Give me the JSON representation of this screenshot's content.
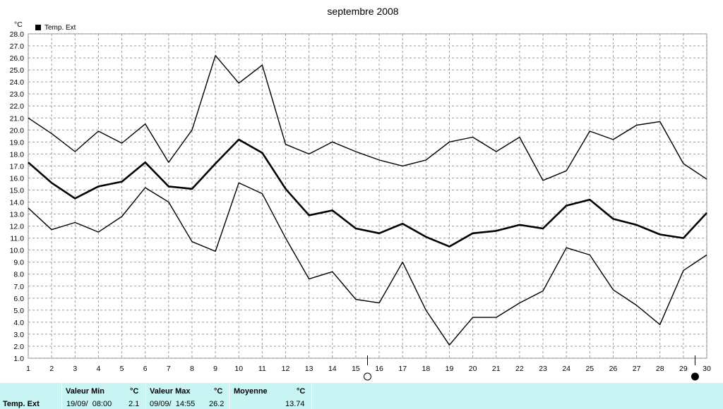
{
  "chart_data": {
    "type": "line",
    "title": "septembre 2008",
    "ylabel": "°C",
    "ylim": [
      1.0,
      28.0
    ],
    "yticks": [
      "1.0",
      "2.0",
      "3.0",
      "4.0",
      "5.0",
      "6.0",
      "7.0",
      "8.0",
      "9.0",
      "10.0",
      "11.0",
      "12.0",
      "13.0",
      "14.0",
      "15.0",
      "16.0",
      "17.0",
      "18.0",
      "19.0",
      "20.0",
      "21.0",
      "22.0",
      "23.0",
      "24.0",
      "25.0",
      "26.0",
      "27.0",
      "28.0"
    ],
    "x": [
      "1",
      "2",
      "3",
      "4",
      "5",
      "6",
      "7",
      "8",
      "9",
      "10",
      "11",
      "12",
      "13",
      "14",
      "15",
      "16",
      "17",
      "18",
      "19",
      "20",
      "21",
      "22",
      "23",
      "24",
      "25",
      "26",
      "27",
      "28",
      "29",
      "30"
    ],
    "legend": {
      "label": "Temp. Ext",
      "color": "#000000",
      "placement": "top-left"
    },
    "grid": true,
    "moon_markers": [
      {
        "day": 15.5,
        "phase": "new",
        "symbol": "○"
      },
      {
        "day": 29.5,
        "phase": "full",
        "symbol": "●"
      }
    ],
    "series": [
      {
        "role": "max",
        "values": [
          21.0,
          19.7,
          18.2,
          19.9,
          18.9,
          20.5,
          17.3,
          20.0,
          26.2,
          23.9,
          25.4,
          18.8,
          18.0,
          19.0,
          18.2,
          17.5,
          17.0,
          17.5,
          19.0,
          19.4,
          18.2,
          19.4,
          15.8,
          16.6,
          19.9,
          19.2,
          20.4,
          20.7,
          17.2,
          15.9
        ]
      },
      {
        "role": "mean",
        "values": [
          17.3,
          15.6,
          14.3,
          15.3,
          15.7,
          17.3,
          15.3,
          15.1,
          17.2,
          19.2,
          18.1,
          15.1,
          12.9,
          13.3,
          11.8,
          11.4,
          12.2,
          11.1,
          10.3,
          11.4,
          11.6,
          12.1,
          11.8,
          13.7,
          14.2,
          12.6,
          12.1,
          11.3,
          11.0,
          13.1
        ]
      },
      {
        "role": "min",
        "values": [
          13.5,
          11.7,
          12.3,
          11.5,
          12.8,
          15.2,
          14.0,
          10.7,
          9.9,
          15.6,
          14.7,
          11.0,
          7.6,
          8.2,
          5.9,
          5.6,
          9.0,
          5.0,
          2.1,
          4.4,
          4.4,
          5.6,
          6.6,
          10.2,
          9.6,
          6.7,
          5.4,
          3.8,
          8.3,
          9.6
        ]
      }
    ]
  },
  "footer": {
    "row_label": "Temp. Ext",
    "min": {
      "label": "Valeur Min",
      "unit": "°C",
      "date": "19/09/  08:00",
      "value": "2.1"
    },
    "max": {
      "label": "Valeur Max",
      "unit": "°C",
      "date": "09/09/  14:55",
      "value": "26.2"
    },
    "avg": {
      "label": "Moyenne",
      "unit": "°C",
      "value": "13.74"
    }
  }
}
